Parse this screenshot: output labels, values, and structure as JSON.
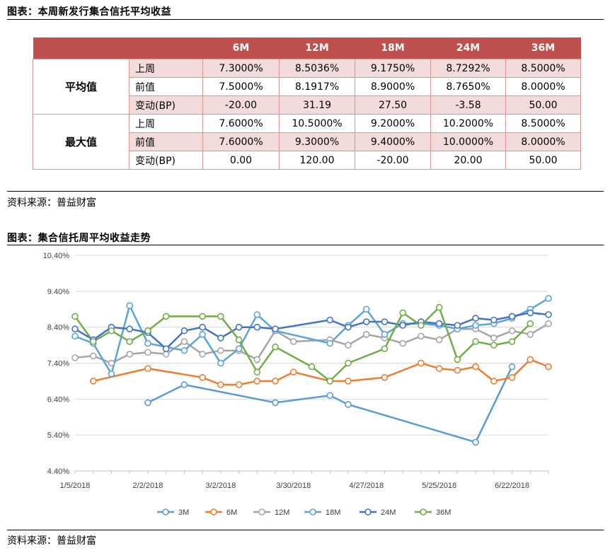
{
  "table_section": {
    "title": "图表：本周新发行集合信托平均收益",
    "source": "资料来源：普益财富",
    "headers": [
      "",
      "",
      "6M",
      "12M",
      "18M",
      "24M",
      "36M"
    ],
    "groups": [
      {
        "name": "平均值",
        "rows": [
          {
            "label": "上周",
            "values": [
              "7.3000%",
              "8.5036%",
              "9.1750%",
              "8.7292%",
              "8.5000%"
            ]
          },
          {
            "label": "前值",
            "values": [
              "7.5000%",
              "8.1917%",
              "8.9000%",
              "8.7650%",
              "8.0000%"
            ]
          },
          {
            "label": "变动(BP)",
            "values": [
              "-20.00",
              "31.19",
              "27.50",
              "-3.58",
              "50.00"
            ]
          }
        ]
      },
      {
        "name": "最大值",
        "rows": [
          {
            "label": "上周",
            "values": [
              "7.6000%",
              "10.5000%",
              "9.2000%",
              "10.2000%",
              "8.5000%"
            ]
          },
          {
            "label": "前值",
            "values": [
              "7.6000%",
              "9.3000%",
              "9.4000%",
              "10.0000%",
              "8.0000%"
            ]
          },
          {
            "label": "变动(BP)",
            "values": [
              "0.00",
              "120.00",
              "-20.00",
              "20.00",
              "50.00"
            ]
          }
        ]
      }
    ]
  },
  "chart_section": {
    "title": "图表：集合信托周平均收益走势",
    "source": "资料来源：普益财富"
  },
  "chart_data": {
    "type": "line",
    "title": "",
    "xlabel": "",
    "ylabel": "",
    "ylim": [
      4.4,
      10.4
    ],
    "yticks": [
      "4.40%",
      "5.40%",
      "6.40%",
      "7.40%",
      "8.40%",
      "9.40%",
      "10.40%"
    ],
    "xticks": [
      "1/5/2018",
      "2/2/2018",
      "3/2/2018",
      "3/30/2018",
      "4/27/2018",
      "5/25/2018",
      "6/22/2018"
    ],
    "grid": true,
    "legend": "bottom",
    "series": [
      {
        "name": "3M",
        "color": "#5b9bd5",
        "points": [
          [
            4,
            6.3
          ],
          [
            6,
            6.8
          ],
          [
            11,
            6.3
          ],
          [
            14,
            6.5
          ],
          [
            15,
            6.25
          ],
          [
            22,
            5.2
          ],
          [
            24,
            7.3
          ]
        ]
      },
      {
        "name": "6M",
        "color": "#ed7d31",
        "points": [
          [
            1,
            6.9
          ],
          [
            4,
            7.25
          ],
          [
            7,
            7.0
          ],
          [
            8,
            6.8
          ],
          [
            9,
            6.8
          ],
          [
            10,
            6.9
          ],
          [
            11,
            6.9
          ],
          [
            12,
            7.15
          ],
          [
            14,
            6.9
          ],
          [
            15,
            6.9
          ],
          [
            17,
            7.0
          ],
          [
            19,
            7.4
          ],
          [
            20,
            7.25
          ],
          [
            21,
            7.2
          ],
          [
            22,
            7.3
          ],
          [
            23,
            6.9
          ],
          [
            24,
            7.0
          ],
          [
            25,
            7.5
          ],
          [
            26,
            7.3
          ]
        ]
      },
      {
        "name": "12M",
        "color": "#a5a5a5",
        "points": [
          [
            0,
            7.55
          ],
          [
            1,
            7.6
          ],
          [
            2,
            7.4
          ],
          [
            3,
            7.65
          ],
          [
            4,
            7.7
          ],
          [
            5,
            7.65
          ],
          [
            6,
            8.0
          ],
          [
            7,
            7.65
          ],
          [
            8,
            7.75
          ],
          [
            9,
            7.75
          ],
          [
            10,
            7.5
          ],
          [
            11,
            8.3
          ],
          [
            12,
            8.0
          ],
          [
            14,
            8.05
          ],
          [
            15,
            7.9
          ],
          [
            16,
            8.2
          ],
          [
            17,
            8.1
          ],
          [
            18,
            7.95
          ],
          [
            19,
            8.15
          ],
          [
            20,
            8.05
          ],
          [
            21,
            8.35
          ],
          [
            22,
            8.35
          ],
          [
            23,
            8.1
          ],
          [
            24,
            8.3
          ],
          [
            25,
            8.2
          ],
          [
            26,
            8.5
          ]
        ]
      },
      {
        "name": "18M",
        "color": "#5ba3d9",
        "points": [
          [
            0,
            8.15
          ],
          [
            1,
            7.95
          ],
          [
            2,
            7.1
          ],
          [
            3,
            9.0
          ],
          [
            4,
            7.95
          ],
          [
            6,
            7.75
          ],
          [
            7,
            8.2
          ],
          [
            8,
            7.4
          ],
          [
            9,
            7.8
          ],
          [
            10,
            8.75
          ],
          [
            11,
            8.3
          ],
          [
            14,
            7.95
          ],
          [
            15,
            8.45
          ],
          [
            16,
            8.9
          ],
          [
            17,
            8.2
          ],
          [
            18,
            8.5
          ],
          [
            19,
            8.5
          ],
          [
            20,
            8.45
          ],
          [
            21,
            8.35
          ],
          [
            22,
            8.45
          ],
          [
            23,
            8.5
          ],
          [
            24,
            8.65
          ],
          [
            25,
            8.9
          ],
          [
            26,
            9.2
          ]
        ]
      },
      {
        "name": "24M",
        "color": "#4472c4",
        "points": [
          [
            0,
            8.35
          ],
          [
            1,
            8.05
          ],
          [
            2,
            8.4
          ],
          [
            3,
            8.35
          ],
          [
            4,
            8.25
          ],
          [
            5,
            7.8
          ],
          [
            6,
            8.3
          ],
          [
            7,
            8.4
          ],
          [
            8,
            8.1
          ],
          [
            9,
            8.4
          ],
          [
            10,
            8.4
          ],
          [
            11,
            8.35
          ],
          [
            14,
            8.6
          ],
          [
            15,
            8.4
          ],
          [
            16,
            8.55
          ],
          [
            17,
            8.55
          ],
          [
            18,
            8.45
          ],
          [
            19,
            8.55
          ],
          [
            20,
            8.5
          ],
          [
            21,
            8.45
          ],
          [
            22,
            8.65
          ],
          [
            23,
            8.6
          ],
          [
            24,
            8.7
          ],
          [
            25,
            8.8
          ],
          [
            26,
            8.75
          ]
        ]
      },
      {
        "name": "36M",
        "color": "#70ad47",
        "points": [
          [
            0,
            8.7
          ],
          [
            1,
            8.0
          ],
          [
            2,
            8.3
          ],
          [
            3,
            8.0
          ],
          [
            4,
            8.3
          ],
          [
            5,
            8.7
          ],
          [
            7,
            8.7
          ],
          [
            8,
            8.7
          ],
          [
            9,
            8.05
          ],
          [
            10,
            7.15
          ],
          [
            11,
            7.85
          ],
          [
            13,
            7.3
          ],
          [
            14,
            6.9
          ],
          [
            15,
            7.4
          ],
          [
            17,
            7.8
          ],
          [
            18,
            8.8
          ],
          [
            19,
            8.45
          ],
          [
            20,
            8.95
          ],
          [
            21,
            7.5
          ],
          [
            22,
            8.0
          ],
          [
            23,
            7.9
          ],
          [
            24,
            8.0
          ],
          [
            25,
            8.5
          ]
        ]
      }
    ]
  }
}
